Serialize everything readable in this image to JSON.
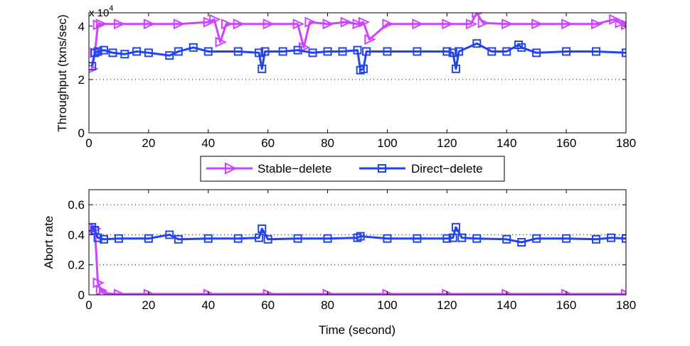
{
  "legend": {
    "entries": [
      {
        "label": "Stable−delete",
        "color": "#cc44ff",
        "marker": "triangle-right"
      },
      {
        "label": "Direct−delete",
        "color": "#2244ee",
        "marker": "square"
      }
    ]
  },
  "chart_data": [
    {
      "type": "line",
      "title": "",
      "xlabel": "",
      "ylabel": "Throughput (txns/sec)",
      "y_multiplier_base": "x 10",
      "y_multiplier_exp": "4",
      "xlim": [
        0,
        180
      ],
      "ylim": [
        0,
        4.5
      ],
      "xticks": [
        0,
        20,
        40,
        60,
        80,
        100,
        120,
        140,
        160,
        180
      ],
      "xtick_labels": [
        "0",
        "20",
        "40",
        "60",
        "80",
        "100",
        "120",
        "140",
        "160",
        "180"
      ],
      "yticks": [
        0,
        2,
        4
      ],
      "ytick_labels": [
        "0",
        "2",
        "4"
      ],
      "dotted_grid_y": [
        2
      ],
      "series": [
        {
          "name": "Stable−delete",
          "x": [
            1,
            2,
            3,
            4,
            10,
            20,
            30,
            40,
            42,
            44,
            46,
            50,
            60,
            70,
            72,
            74,
            80,
            86,
            90,
            92,
            94,
            100,
            110,
            120,
            128,
            130,
            132,
            140,
            150,
            160,
            170,
            176,
            178,
            180
          ],
          "y": [
            2.4,
            3.0,
            4.05,
            4.08,
            4.08,
            4.08,
            4.08,
            4.15,
            4.25,
            3.4,
            4.08,
            4.08,
            4.08,
            4.08,
            3.2,
            4.15,
            4.08,
            4.15,
            4.08,
            4.15,
            3.5,
            4.08,
            4.08,
            4.08,
            4.08,
            4.5,
            4.12,
            4.08,
            4.08,
            4.08,
            4.08,
            4.25,
            4.12,
            4.05
          ]
        },
        {
          "name": "Direct−delete",
          "x": [
            1,
            2,
            3,
            5,
            8,
            12,
            16,
            20,
            27,
            30,
            35,
            40,
            50,
            57,
            58,
            59,
            65,
            70,
            75,
            80,
            85,
            90,
            91,
            92,
            93,
            100,
            110,
            120,
            122,
            123,
            124,
            130,
            135,
            140,
            144,
            145,
            150,
            160,
            170,
            180
          ],
          "y": [
            2.5,
            3.0,
            3.05,
            3.1,
            3.0,
            2.95,
            3.05,
            3.0,
            2.9,
            3.05,
            3.2,
            3.05,
            3.05,
            3.0,
            2.4,
            3.05,
            3.05,
            3.1,
            3.0,
            3.05,
            3.05,
            3.1,
            2.35,
            2.4,
            3.05,
            3.05,
            3.05,
            3.05,
            3.0,
            2.4,
            3.05,
            3.35,
            3.05,
            3.05,
            3.3,
            3.2,
            3.0,
            3.05,
            3.05,
            3.0
          ]
        }
      ]
    },
    {
      "type": "line",
      "title": "",
      "xlabel": "Time (second)",
      "ylabel": "Abort rate",
      "xlim": [
        0,
        180
      ],
      "ylim": [
        0,
        0.7
      ],
      "xticks": [
        0,
        20,
        40,
        60,
        80,
        100,
        120,
        140,
        160,
        180
      ],
      "xtick_labels": [
        "0",
        "20",
        "40",
        "60",
        "80",
        "100",
        "120",
        "140",
        "160",
        "180"
      ],
      "yticks": [
        0,
        0.2,
        0.4,
        0.6
      ],
      "ytick_labels": [
        "0",
        "0.2",
        "0.4",
        "0.6"
      ],
      "dotted_grid_y": [
        0.2,
        0.4,
        0.6
      ],
      "series": [
        {
          "name": "Stable−delete",
          "x": [
            1,
            2,
            3,
            4,
            5,
            10,
            20,
            40,
            60,
            80,
            100,
            120,
            140,
            160,
            180
          ],
          "y": [
            0.45,
            0.44,
            0.08,
            0.03,
            0.01,
            0.005,
            0.005,
            0.005,
            0.005,
            0.005,
            0.005,
            0.005,
            0.005,
            0.005,
            0.005
          ]
        },
        {
          "name": "Direct−delete",
          "x": [
            1,
            2,
            3,
            5,
            10,
            20,
            27,
            30,
            40,
            50,
            57,
            58,
            60,
            70,
            80,
            90,
            91,
            100,
            110,
            120,
            122,
            123,
            125,
            130,
            140,
            145,
            150,
            160,
            170,
            175,
            180
          ],
          "y": [
            0.45,
            0.43,
            0.38,
            0.37,
            0.375,
            0.375,
            0.4,
            0.37,
            0.375,
            0.375,
            0.38,
            0.44,
            0.37,
            0.375,
            0.375,
            0.38,
            0.39,
            0.375,
            0.375,
            0.375,
            0.38,
            0.45,
            0.38,
            0.375,
            0.37,
            0.35,
            0.375,
            0.375,
            0.37,
            0.38,
            0.375
          ]
        }
      ]
    }
  ]
}
